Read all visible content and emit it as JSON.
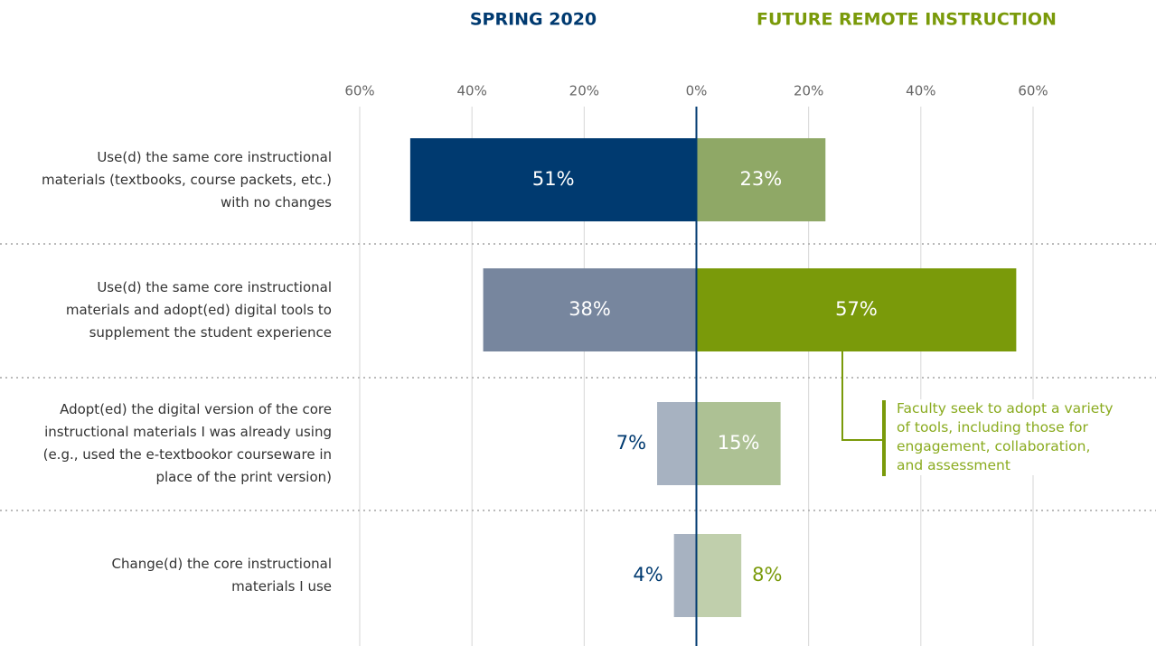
{
  "chart_data": {
    "type": "diverging-bar",
    "categories": [
      "Use(d) the same core instructional\nmaterials (textbooks, course packets, etc.)\nwith no changes",
      "Use(d) the same core instructional\nmaterials and adopt(ed) digital tools to\nsupplement the student experience",
      "Adopt(ed) the digital version of the core\ninstructional materials I was already using\n(e.g., used the e-textbookor courseware in\nplace of the print version)",
      "Change(d) the core instructional\nmaterials I use"
    ],
    "series": [
      {
        "name": "SPRING 2020",
        "side": "left",
        "color": "#003a70",
        "colors": [
          "#003a70",
          "#77869e",
          "#a7b2c1",
          "#a7b2c1"
        ],
        "values": [
          51,
          38,
          7,
          4
        ],
        "value_labels": [
          "51%",
          "38%",
          "7%",
          "4%"
        ]
      },
      {
        "name": "FUTURE REMOTE INSTRUCTION",
        "side": "right",
        "color": "#7a9a0a",
        "colors": [
          "#8fa866",
          "#7a9a0a",
          "#adc194",
          "#c0cfac"
        ],
        "values": [
          23,
          57,
          15,
          8
        ],
        "value_labels": [
          "23%",
          "57%",
          "15%",
          "8%"
        ]
      }
    ],
    "xlim": [
      -60,
      60
    ],
    "xticks": [
      {
        "value": -60,
        "label": "60%"
      },
      {
        "value": -40,
        "label": "40%"
      },
      {
        "value": -20,
        "label": "20%"
      },
      {
        "value": 0,
        "label": "0%"
      },
      {
        "value": 20,
        "label": "20%"
      },
      {
        "value": 40,
        "label": "40%"
      },
      {
        "value": 60,
        "label": "60%"
      }
    ],
    "grid": true,
    "annotation": "Faculty seek to adopt a variety\nof tools, including those for\nengagement, collaboration,\nand assessment"
  }
}
